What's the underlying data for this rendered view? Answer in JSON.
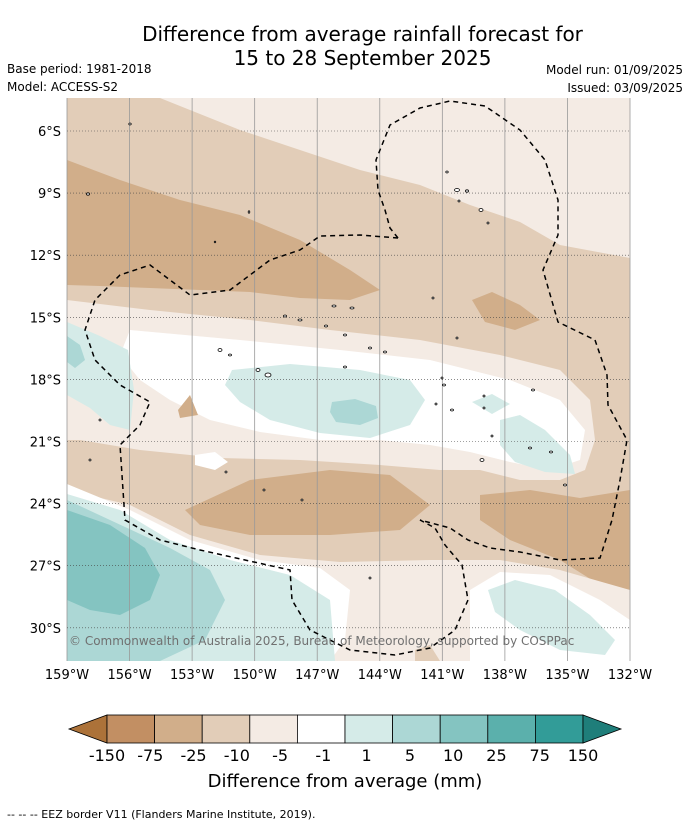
{
  "header": {
    "title_line1": "Difference from average rainfall forecast for",
    "title_line2": "15 to 28 September 2025",
    "base_period": "Base period: 1981-2018",
    "model": "Model: ACCESS-S2",
    "model_run": "Model run: 01/09/2025",
    "issued": "Issued: 03/09/2025"
  },
  "map": {
    "lon_labels": [
      "159°W",
      "156°W",
      "153°W",
      "150°W",
      "147°W",
      "144°W",
      "141°W",
      "138°W",
      "135°W",
      "132°W"
    ],
    "lat_labels": [
      "6°S",
      "9°S",
      "12°S",
      "15°S",
      "18°S",
      "21°S",
      "24°S",
      "27°S",
      "30°S"
    ],
    "credit": "© Commonwealth of Australia 2025, Bureau of Meteorology, supported by COSPPac"
  },
  "colorbar": {
    "labels": [
      "-150",
      "-75",
      "-25",
      "-10",
      "-5",
      "-1",
      "1",
      "5",
      "10",
      "25",
      "75",
      "150"
    ],
    "colors": [
      "#ac7239",
      "#c28f63",
      "#d1ae8a",
      "#e2cdb8",
      "#f4ebe4",
      "#ffffff",
      "#d5ebe8",
      "#acd7d5",
      "#84c4c1",
      "#5bb0ac",
      "#329c98",
      "#1f7e7a"
    ],
    "title": "Difference from average (mm)"
  },
  "footer": {
    "eez_note": "--  --  -- EEZ border V11 (Flanders Marine Institute, 2019)."
  }
}
